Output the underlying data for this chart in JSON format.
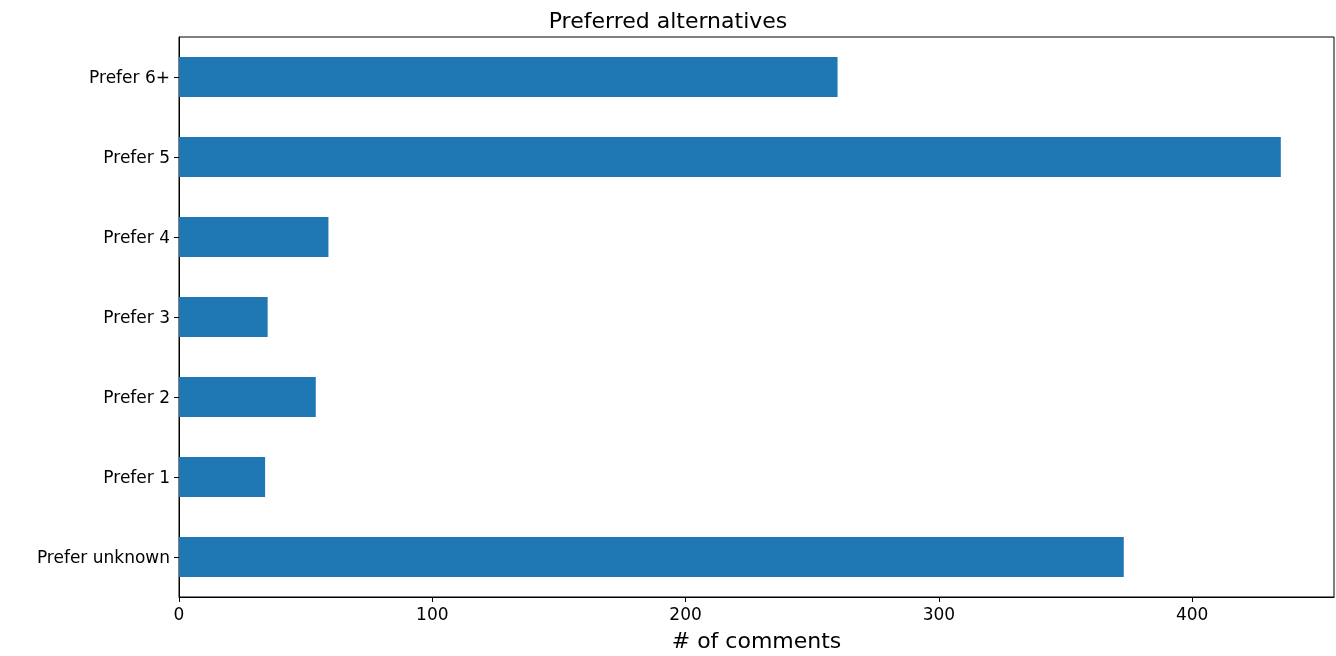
{
  "chart_data": {
    "type": "bar",
    "title": "Preferred alternatives",
    "xlabel": "# of comments",
    "orientation": "horizontal",
    "categories": [
      "Prefer 6+",
      "Prefer 5",
      "Prefer 4",
      "Prefer 3",
      "Prefer 2",
      "Prefer 1",
      "Prefer unknown"
    ],
    "values": [
      260,
      435,
      59,
      35,
      54,
      34,
      373
    ],
    "color": "#1f77b4",
    "xlim": [
      0,
      456
    ],
    "xticks": [
      0,
      100,
      200,
      300,
      400
    ],
    "grid": false
  }
}
